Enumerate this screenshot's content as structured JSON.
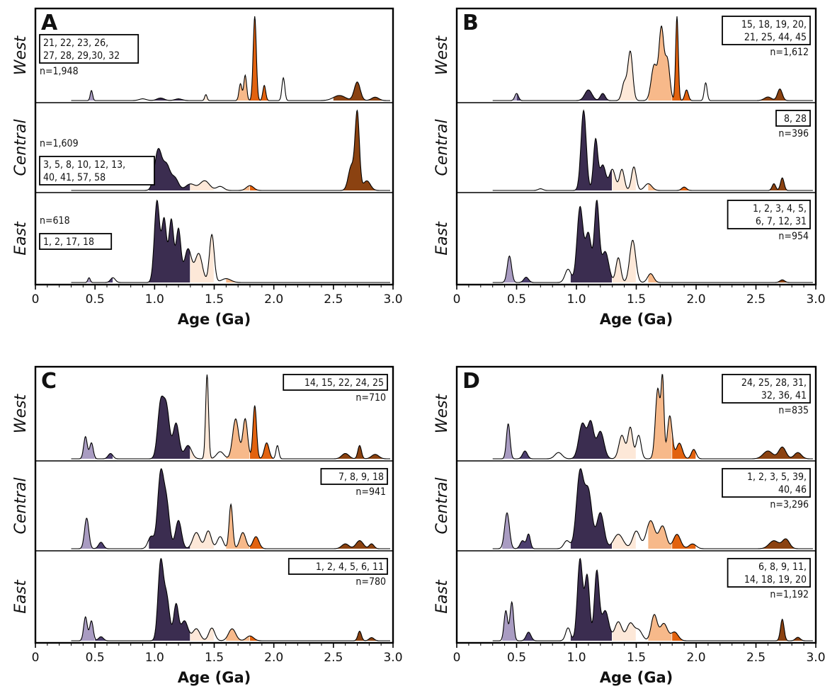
{
  "colors": {
    "band_0_45": "#a99cc2",
    "band_0_6": "#4d3f6f",
    "band_1_1": "#3b2d50",
    "band_1_4": "#fde8d8",
    "band_1_7": "#f7b98a",
    "band_1_85": "#e2620f",
    "band_2_7": "#8b4211",
    "outline": "#000000"
  },
  "axis": {
    "xlabel": "Age (Ga)",
    "xlim": [
      0,
      3.0
    ],
    "xticks": [
      "0",
      "0.5",
      "1.0",
      "1.5",
      "2.0",
      "2.5",
      "3.0"
    ]
  },
  "chart_data": [
    {
      "type": "area",
      "panel": "A",
      "xlabel": "Age (Ga)",
      "rows": [
        {
          "label": "West",
          "n": "n=1,948",
          "sources": [
            "21, 22, 23, 26,",
            "27, 28, 29,30, 32"
          ],
          "note_side": "left",
          "peaks": [
            [
              0.47,
              0.12,
              0.01
            ],
            [
              0.9,
              0.02,
              0.03
            ],
            [
              1.05,
              0.03,
              0.03
            ],
            [
              1.2,
              0.02,
              0.03
            ],
            [
              1.43,
              0.07,
              0.01
            ],
            [
              1.72,
              0.2,
              0.012
            ],
            [
              1.76,
              0.3,
              0.012
            ],
            [
              1.84,
              1.0,
              0.013
            ],
            [
              1.92,
              0.18,
              0.012
            ],
            [
              2.08,
              0.27,
              0.012
            ],
            [
              2.55,
              0.06,
              0.05
            ],
            [
              2.7,
              0.22,
              0.025
            ],
            [
              2.85,
              0.04,
              0.03
            ]
          ]
        },
        {
          "label": "Central",
          "n": "n=1,609",
          "sources": [
            "3, 5, 8, 10, 12, 13,",
            "40, 41, 57, 58"
          ],
          "note_side": "left",
          "peaks": [
            [
              1.03,
              0.5,
              0.03
            ],
            [
              1.1,
              0.3,
              0.03
            ],
            [
              1.17,
              0.15,
              0.03
            ],
            [
              1.3,
              0.08,
              0.04
            ],
            [
              1.42,
              0.12,
              0.04
            ],
            [
              1.55,
              0.05,
              0.03
            ],
            [
              1.8,
              0.06,
              0.03
            ],
            [
              2.65,
              0.3,
              0.025
            ],
            [
              2.7,
              0.95,
              0.018
            ],
            [
              2.78,
              0.12,
              0.03
            ]
          ]
        },
        {
          "label": "East",
          "n": "n=618",
          "sources": [
            "1, 2, 17, 18"
          ],
          "note_side": "left",
          "peaks": [
            [
              0.45,
              0.05,
              0.01
            ],
            [
              0.65,
              0.05,
              0.02
            ],
            [
              1.02,
              0.85,
              0.022
            ],
            [
              1.08,
              0.65,
              0.02
            ],
            [
              1.14,
              0.65,
              0.02
            ],
            [
              1.2,
              0.55,
              0.02
            ],
            [
              1.28,
              0.35,
              0.03
            ],
            [
              1.37,
              0.3,
              0.03
            ],
            [
              1.48,
              0.5,
              0.02
            ],
            [
              1.6,
              0.04,
              0.04
            ]
          ]
        }
      ]
    },
    {
      "type": "area",
      "panel": "B",
      "xlabel": "Age (Ga)",
      "rows": [
        {
          "label": "West",
          "n": "n=1,612",
          "sources": [
            "15, 18, 19, 20,",
            "21, 25, 44, 45"
          ],
          "note_side": "right",
          "peaks": [
            [
              0.5,
              0.08,
              0.015
            ],
            [
              1.1,
              0.12,
              0.03
            ],
            [
              1.22,
              0.08,
              0.02
            ],
            [
              1.45,
              0.55,
              0.02
            ],
            [
              1.4,
              0.2,
              0.02
            ],
            [
              1.65,
              0.4,
              0.025
            ],
            [
              1.71,
              0.8,
              0.02
            ],
            [
              1.76,
              0.45,
              0.02
            ],
            [
              1.84,
              0.95,
              0.011
            ],
            [
              1.92,
              0.12,
              0.015
            ],
            [
              2.08,
              0.2,
              0.012
            ],
            [
              2.7,
              0.13,
              0.02
            ],
            [
              2.6,
              0.04,
              0.03
            ]
          ]
        },
        {
          "label": "Central",
          "n": "n=396",
          "sources": [
            "8, 28"
          ],
          "note_side": "right",
          "peaks": [
            [
              1.06,
              0.95,
              0.022
            ],
            [
              1.16,
              0.6,
              0.018
            ],
            [
              1.22,
              0.3,
              0.025
            ],
            [
              1.3,
              0.25,
              0.025
            ],
            [
              1.38,
              0.25,
              0.02
            ],
            [
              1.48,
              0.28,
              0.02
            ],
            [
              1.6,
              0.08,
              0.03
            ],
            [
              1.9,
              0.04,
              0.02
            ],
            [
              2.65,
              0.08,
              0.015
            ],
            [
              2.72,
              0.15,
              0.015
            ],
            [
              0.7,
              0.02,
              0.02
            ]
          ]
        },
        {
          "label": "East",
          "n": "n=954",
          "sources": [
            "1, 2, 3, 4, 5,",
            "6, 7, 12, 31"
          ],
          "note_side": "right",
          "peaks": [
            [
              0.44,
              0.3,
              0.018
            ],
            [
              0.58,
              0.06,
              0.02
            ],
            [
              0.93,
              0.15,
              0.025
            ],
            [
              1.03,
              0.85,
              0.025
            ],
            [
              1.1,
              0.55,
              0.025
            ],
            [
              1.17,
              0.9,
              0.02
            ],
            [
              1.24,
              0.35,
              0.03
            ],
            [
              1.35,
              0.28,
              0.02
            ],
            [
              1.47,
              0.48,
              0.025
            ],
            [
              1.62,
              0.1,
              0.025
            ],
            [
              2.72,
              0.03,
              0.02
            ]
          ]
        }
      ]
    },
    {
      "type": "area",
      "panel": "C",
      "xlabel": "Age (Ga)",
      "rows": [
        {
          "label": "West",
          "n": "n=710",
          "sources": [
            "14, 15, 22, 24, 25"
          ],
          "note_side": "right",
          "peaks": [
            [
              0.42,
              0.25,
              0.015
            ],
            [
              0.47,
              0.18,
              0.015
            ],
            [
              0.63,
              0.06,
              0.02
            ],
            [
              1.05,
              0.6,
              0.025
            ],
            [
              1.1,
              0.55,
              0.025
            ],
            [
              1.18,
              0.4,
              0.025
            ],
            [
              1.28,
              0.15,
              0.03
            ],
            [
              1.44,
              0.95,
              0.012
            ],
            [
              1.55,
              0.08,
              0.03
            ],
            [
              1.68,
              0.45,
              0.025
            ],
            [
              1.76,
              0.45,
              0.02
            ],
            [
              1.84,
              0.6,
              0.015
            ],
            [
              1.94,
              0.18,
              0.02
            ],
            [
              2.03,
              0.15,
              0.012
            ],
            [
              2.6,
              0.06,
              0.03
            ],
            [
              2.72,
              0.15,
              0.015
            ],
            [
              2.85,
              0.05,
              0.03
            ]
          ]
        },
        {
          "label": "Central",
          "n": "n=941",
          "sources": [
            "7, 8, 9, 18"
          ],
          "note_side": "right",
          "peaks": [
            [
              0.43,
              0.38,
              0.018
            ],
            [
              0.55,
              0.08,
              0.02
            ],
            [
              0.97,
              0.15,
              0.025
            ],
            [
              1.05,
              0.9,
              0.025
            ],
            [
              1.1,
              0.55,
              0.025
            ],
            [
              1.2,
              0.35,
              0.025
            ],
            [
              1.35,
              0.2,
              0.03
            ],
            [
              1.45,
              0.22,
              0.025
            ],
            [
              1.55,
              0.15,
              0.025
            ],
            [
              1.64,
              0.55,
              0.015
            ],
            [
              1.74,
              0.2,
              0.025
            ],
            [
              1.85,
              0.15,
              0.025
            ],
            [
              2.6,
              0.06,
              0.03
            ],
            [
              2.72,
              0.1,
              0.03
            ],
            [
              2.82,
              0.06,
              0.02
            ]
          ]
        },
        {
          "label": "East",
          "n": "n=780",
          "sources": [
            "1, 2, 4, 5, 6, 11"
          ],
          "note_side": "right",
          "peaks": [
            [
              0.42,
              0.3,
              0.015
            ],
            [
              0.47,
              0.25,
              0.015
            ],
            [
              0.55,
              0.05,
              0.02
            ],
            [
              1.05,
              0.95,
              0.022
            ],
            [
              1.1,
              0.55,
              0.025
            ],
            [
              1.18,
              0.45,
              0.02
            ],
            [
              1.25,
              0.25,
              0.03
            ],
            [
              1.35,
              0.15,
              0.03
            ],
            [
              1.48,
              0.16,
              0.025
            ],
            [
              1.65,
              0.15,
              0.03
            ],
            [
              1.8,
              0.06,
              0.03
            ],
            [
              2.72,
              0.12,
              0.015
            ],
            [
              2.82,
              0.04,
              0.02
            ]
          ]
        }
      ]
    },
    {
      "type": "area",
      "panel": "D",
      "xlabel": "Age (Ga)",
      "rows": [
        {
          "label": "West",
          "n": "n=835",
          "sources": [
            "24, 25, 28, 31,",
            "32, 36, 41"
          ],
          "note_side": "right",
          "peaks": [
            [
              0.43,
              0.45,
              0.015
            ],
            [
              0.57,
              0.1,
              0.02
            ],
            [
              0.85,
              0.08,
              0.03
            ],
            [
              1.05,
              0.45,
              0.03
            ],
            [
              1.12,
              0.45,
              0.025
            ],
            [
              1.2,
              0.35,
              0.03
            ],
            [
              1.38,
              0.3,
              0.025
            ],
            [
              1.45,
              0.4,
              0.02
            ],
            [
              1.52,
              0.3,
              0.02
            ],
            [
              1.68,
              0.9,
              0.02
            ],
            [
              1.72,
              0.95,
              0.012
            ],
            [
              1.78,
              0.55,
              0.02
            ],
            [
              1.86,
              0.2,
              0.025
            ],
            [
              1.98,
              0.12,
              0.02
            ],
            [
              2.6,
              0.1,
              0.04
            ],
            [
              2.72,
              0.15,
              0.03
            ],
            [
              2.85,
              0.08,
              0.03
            ]
          ]
        },
        {
          "label": "Central",
          "n": "n=3,296",
          "sources": [
            "1, 2, 3, 5, 39,",
            "40, 46"
          ],
          "note_side": "right",
          "peaks": [
            [
              0.42,
              0.45,
              0.02
            ],
            [
              0.55,
              0.1,
              0.02
            ],
            [
              0.6,
              0.18,
              0.015
            ],
            [
              0.92,
              0.1,
              0.025
            ],
            [
              1.03,
              0.95,
              0.03
            ],
            [
              1.1,
              0.7,
              0.03
            ],
            [
              1.2,
              0.45,
              0.03
            ],
            [
              1.35,
              0.18,
              0.04
            ],
            [
              1.5,
              0.22,
              0.03
            ],
            [
              1.62,
              0.35,
              0.035
            ],
            [
              1.72,
              0.28,
              0.03
            ],
            [
              1.84,
              0.18,
              0.03
            ],
            [
              1.97,
              0.06,
              0.03
            ],
            [
              2.65,
              0.1,
              0.04
            ],
            [
              2.75,
              0.12,
              0.03
            ]
          ]
        },
        {
          "label": "East",
          "n": "n=1,192",
          "sources": [
            "6, 8, 9, 11,",
            "14, 18, 19, 20"
          ],
          "note_side": "right",
          "peaks": [
            [
              0.41,
              0.35,
              0.015
            ],
            [
              0.46,
              0.45,
              0.015
            ],
            [
              0.6,
              0.1,
              0.02
            ],
            [
              0.93,
              0.15,
              0.02
            ],
            [
              1.03,
              0.95,
              0.022
            ],
            [
              1.09,
              0.75,
              0.02
            ],
            [
              1.17,
              0.8,
              0.02
            ],
            [
              1.24,
              0.35,
              0.03
            ],
            [
              1.35,
              0.22,
              0.03
            ],
            [
              1.45,
              0.2,
              0.03
            ],
            [
              1.52,
              0.12,
              0.03
            ],
            [
              1.65,
              0.3,
              0.025
            ],
            [
              1.73,
              0.2,
              0.03
            ],
            [
              1.82,
              0.1,
              0.03
            ],
            [
              2.72,
              0.25,
              0.015
            ],
            [
              2.85,
              0.04,
              0.02
            ]
          ]
        }
      ]
    }
  ]
}
